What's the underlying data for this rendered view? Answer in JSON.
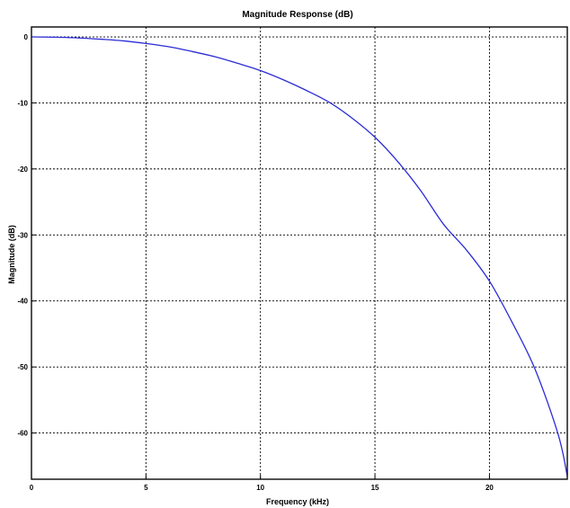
{
  "chart_data": {
    "type": "line",
    "title": "Magnitude Response (dB)",
    "xlabel": "Frequency (kHz)",
    "ylabel": "Magnitude (dB)",
    "xlim": [
      0,
      23.4
    ],
    "ylim": [
      -67,
      1.5
    ],
    "grid": true,
    "x_ticks": [
      0,
      5,
      10,
      15,
      20
    ],
    "y_ticks": [
      0,
      -10,
      -20,
      -30,
      -40,
      -50,
      -60
    ],
    "x_tick_labels": [
      "0",
      "5",
      "10",
      "15",
      "20"
    ],
    "y_tick_labels": [
      "0",
      "-10",
      "-20",
      "-30",
      "-40",
      "-50",
      "-60"
    ],
    "series": [
      {
        "color": "#2b2bd6",
        "x": [
          0,
          1,
          2,
          3,
          4,
          5,
          6,
          7,
          8,
          9,
          10,
          11,
          12,
          13,
          14,
          15,
          16,
          17,
          18,
          19,
          20,
          21,
          22,
          23,
          23.4
        ],
        "y": [
          0,
          -0.05,
          -0.15,
          -0.35,
          -0.6,
          -1.0,
          -1.5,
          -2.2,
          -3.0,
          -4.0,
          -5.1,
          -6.5,
          -8.1,
          -9.9,
          -12.3,
          -15.2,
          -18.9,
          -23.3,
          -28.4,
          -32.3,
          -37.0,
          -43.3,
          -50.4,
          -60.2,
          -66.5
        ]
      }
    ]
  }
}
